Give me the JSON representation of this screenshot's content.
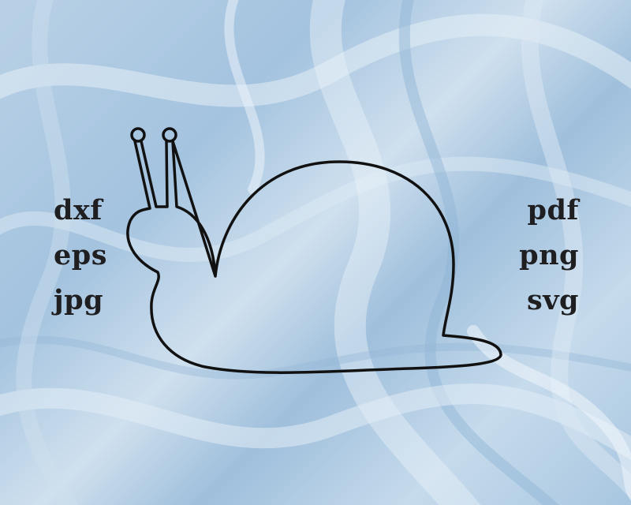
{
  "formats_left": [
    "dxf",
    "eps",
    "jpg"
  ],
  "formats_right": [
    "pdf",
    "png",
    "svg"
  ],
  "colors": {
    "background_base": "#a9c7e2",
    "background_light": "#d6e5f1",
    "outline": "#111111",
    "text": "#1f1f22"
  },
  "illustration": "snail-outline"
}
